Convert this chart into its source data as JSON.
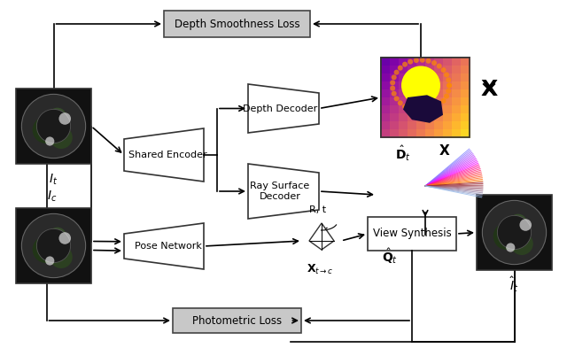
{
  "bg_color": "#ffffff",
  "title": "",
  "fig_width": 6.4,
  "fig_height": 3.93,
  "dpi": 100,
  "loss_box_color": "#c8c8c8",
  "loss_box_edge": "#444444",
  "decoder_box_color": "#ffffff",
  "decoder_box_edge": "#222222",
  "view_synth_box_color": "#ffffff",
  "view_synth_box_edge": "#222222",
  "depth_smoothness_label": "Depth Smoothness Loss",
  "shared_encoder_label": "Shared Encoder",
  "depth_decoder_label": "Depth Decoder",
  "ray_surface_label": "Ray Surface\nDecoder",
  "pose_network_label": "Pose Network",
  "view_synthesis_label": "View Synthesis",
  "photometric_loss_label": "Photometric Loss",
  "D_hat_t_label": "$\\hat{\\mathbf{D}}_t$",
  "X_label": "$\\mathbf{X}$",
  "Q_hat_t_label": "$\\hat{\\mathbf{Q}}_t$",
  "I_t_label": "$I_t$",
  "I_c_label": "$I_c$",
  "I_hat_t_label": "$\\hat{I}_t$",
  "R_t_label": "R, t",
  "X_tc_label": "$\\mathbf{X}_{t\\rightarrow c}$"
}
